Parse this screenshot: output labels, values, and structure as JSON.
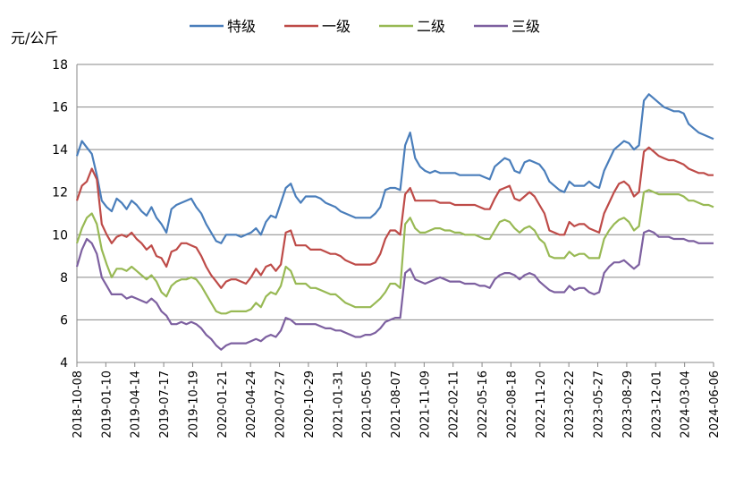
{
  "chart_data": {
    "type": "line",
    "ylabel": "元/公斤",
    "ylim": [
      4,
      18
    ],
    "yticks": [
      4,
      6,
      8,
      10,
      12,
      14,
      16,
      18
    ],
    "grid": "horizontal",
    "legend_position": "top",
    "x_tick_labels": [
      "2018-10-08",
      "2019-01-10",
      "2019-04-14",
      "2019-07-17",
      "2019-10-19",
      "2020-01-21",
      "2020-04-24",
      "2020-07-27",
      "2020-10-29",
      "2021-01-31",
      "2021-05-05",
      "2021-08-07",
      "2021-11-09",
      "2022-02-11",
      "2022-05-16",
      "2022-08-18",
      "2022-11-20",
      "2023-02-22",
      "2023-05-27",
      "2023-08-29",
      "2023-12-01",
      "2024-03-04",
      "2024-06-06"
    ],
    "series": [
      {
        "name": "特级",
        "color": "#4a7ebb",
        "values": [
          13.7,
          14.4,
          14.1,
          13.8,
          12.8,
          11.6,
          11.3,
          11.1,
          11.7,
          11.5,
          11.2,
          11.6,
          11.4,
          11.1,
          10.9,
          11.3,
          10.8,
          10.5,
          10.1,
          11.2,
          11.4,
          11.5,
          11.6,
          11.7,
          11.3,
          11.0,
          10.5,
          10.1,
          9.7,
          9.6,
          10.0,
          10.0,
          10.0,
          9.9,
          10.0,
          10.1,
          10.3,
          10.0,
          10.6,
          10.9,
          10.8,
          11.5,
          12.2,
          12.4,
          11.8,
          11.5,
          11.8,
          11.8,
          11.8,
          11.7,
          11.5,
          11.4,
          11.3,
          11.1,
          11.0,
          10.9,
          10.8,
          10.8,
          10.8,
          10.8,
          11.0,
          11.3,
          12.1,
          12.2,
          12.2,
          12.1,
          14.2,
          14.8,
          13.6,
          13.2,
          13.0,
          12.9,
          13.0,
          12.9,
          12.9,
          12.9,
          12.9,
          12.8,
          12.8,
          12.8,
          12.8,
          12.8,
          12.7,
          12.6,
          13.2,
          13.4,
          13.6,
          13.5,
          13.0,
          12.9,
          13.4,
          13.5,
          13.4,
          13.3,
          13.0,
          12.5,
          12.3,
          12.1,
          12.0,
          12.5,
          12.3,
          12.3,
          12.3,
          12.5,
          12.3,
          12.2,
          13.0,
          13.5,
          14.0,
          14.2,
          14.4,
          14.3,
          14.0,
          14.2,
          16.3,
          16.6,
          16.4,
          16.2,
          16.0,
          15.9,
          15.8,
          15.8,
          15.7,
          15.2,
          15.0,
          14.8,
          14.7,
          14.6,
          14.5
        ]
      },
      {
        "name": "一级",
        "color": "#be4b48",
        "values": [
          11.6,
          12.3,
          12.5,
          13.1,
          12.6,
          10.5,
          10.0,
          9.6,
          9.9,
          10.0,
          9.9,
          10.1,
          9.8,
          9.6,
          9.3,
          9.5,
          9.0,
          8.9,
          8.5,
          9.2,
          9.3,
          9.6,
          9.6,
          9.5,
          9.4,
          9.0,
          8.5,
          8.1,
          7.8,
          7.5,
          7.8,
          7.9,
          7.9,
          7.8,
          7.7,
          8.0,
          8.4,
          8.1,
          8.5,
          8.6,
          8.3,
          8.6,
          10.1,
          10.2,
          9.5,
          9.5,
          9.5,
          9.3,
          9.3,
          9.3,
          9.2,
          9.1,
          9.1,
          9.0,
          8.8,
          8.7,
          8.6,
          8.6,
          8.6,
          8.6,
          8.7,
          9.1,
          9.8,
          10.2,
          10.2,
          10.0,
          11.9,
          12.2,
          11.6,
          11.6,
          11.6,
          11.6,
          11.6,
          11.5,
          11.5,
          11.5,
          11.4,
          11.4,
          11.4,
          11.4,
          11.4,
          11.3,
          11.2,
          11.2,
          11.7,
          12.1,
          12.2,
          12.3,
          11.7,
          11.6,
          11.8,
          12.0,
          11.8,
          11.4,
          11.0,
          10.2,
          10.1,
          10.0,
          10.0,
          10.6,
          10.4,
          10.5,
          10.5,
          10.3,
          10.2,
          10.1,
          11.0,
          11.5,
          12.0,
          12.4,
          12.5,
          12.3,
          11.8,
          12.0,
          13.9,
          14.1,
          13.9,
          13.7,
          13.6,
          13.5,
          13.5,
          13.4,
          13.3,
          13.1,
          13.0,
          12.9,
          12.9,
          12.8,
          12.8
        ]
      },
      {
        "name": "二级",
        "color": "#98b954",
        "values": [
          9.6,
          10.3,
          10.8,
          11.0,
          10.5,
          9.3,
          8.6,
          8.0,
          8.4,
          8.4,
          8.3,
          8.5,
          8.3,
          8.1,
          7.9,
          8.1,
          7.8,
          7.3,
          7.1,
          7.6,
          7.8,
          7.9,
          7.9,
          8.0,
          7.9,
          7.6,
          7.2,
          6.8,
          6.4,
          6.3,
          6.3,
          6.4,
          6.4,
          6.4,
          6.4,
          6.5,
          6.8,
          6.6,
          7.1,
          7.3,
          7.2,
          7.6,
          8.5,
          8.3,
          7.7,
          7.7,
          7.7,
          7.5,
          7.5,
          7.4,
          7.3,
          7.2,
          7.2,
          7.0,
          6.8,
          6.7,
          6.6,
          6.6,
          6.6,
          6.6,
          6.8,
          7.0,
          7.3,
          7.7,
          7.7,
          7.5,
          10.5,
          10.8,
          10.3,
          10.1,
          10.1,
          10.2,
          10.3,
          10.3,
          10.2,
          10.2,
          10.1,
          10.1,
          10.0,
          10.0,
          10.0,
          9.9,
          9.8,
          9.8,
          10.2,
          10.6,
          10.7,
          10.6,
          10.3,
          10.1,
          10.3,
          10.4,
          10.2,
          9.8,
          9.6,
          9.0,
          8.9,
          8.9,
          8.9,
          9.2,
          9.0,
          9.1,
          9.1,
          8.9,
          8.9,
          8.9,
          9.8,
          10.2,
          10.5,
          10.7,
          10.8,
          10.6,
          10.2,
          10.4,
          12.0,
          12.1,
          12.0,
          11.9,
          11.9,
          11.9,
          11.9,
          11.9,
          11.8,
          11.6,
          11.6,
          11.5,
          11.4,
          11.4,
          11.3
        ]
      },
      {
        "name": "三级",
        "color": "#7d60a0",
        "values": [
          8.5,
          9.3,
          9.8,
          9.6,
          9.1,
          8.0,
          7.6,
          7.2,
          7.2,
          7.2,
          7.0,
          7.1,
          7.0,
          6.9,
          6.8,
          7.0,
          6.8,
          6.4,
          6.2,
          5.8,
          5.8,
          5.9,
          5.8,
          5.9,
          5.8,
          5.6,
          5.3,
          5.1,
          4.8,
          4.6,
          4.8,
          4.9,
          4.9,
          4.9,
          4.9,
          5.0,
          5.1,
          5.0,
          5.2,
          5.3,
          5.2,
          5.5,
          6.1,
          6.0,
          5.8,
          5.8,
          5.8,
          5.8,
          5.8,
          5.7,
          5.6,
          5.6,
          5.5,
          5.5,
          5.4,
          5.3,
          5.2,
          5.2,
          5.3,
          5.3,
          5.4,
          5.6,
          5.9,
          6.0,
          6.1,
          6.1,
          8.2,
          8.4,
          7.9,
          7.8,
          7.7,
          7.8,
          7.9,
          8.0,
          7.9,
          7.8,
          7.8,
          7.8,
          7.7,
          7.7,
          7.7,
          7.6,
          7.6,
          7.5,
          7.9,
          8.1,
          8.2,
          8.2,
          8.1,
          7.9,
          8.1,
          8.2,
          8.1,
          7.8,
          7.6,
          7.4,
          7.3,
          7.3,
          7.3,
          7.6,
          7.4,
          7.5,
          7.5,
          7.3,
          7.2,
          7.3,
          8.2,
          8.5,
          8.7,
          8.7,
          8.8,
          8.6,
          8.4,
          8.6,
          10.1,
          10.2,
          10.1,
          9.9,
          9.9,
          9.9,
          9.8,
          9.8,
          9.8,
          9.7,
          9.7,
          9.6,
          9.6,
          9.6,
          9.6
        ]
      }
    ]
  }
}
